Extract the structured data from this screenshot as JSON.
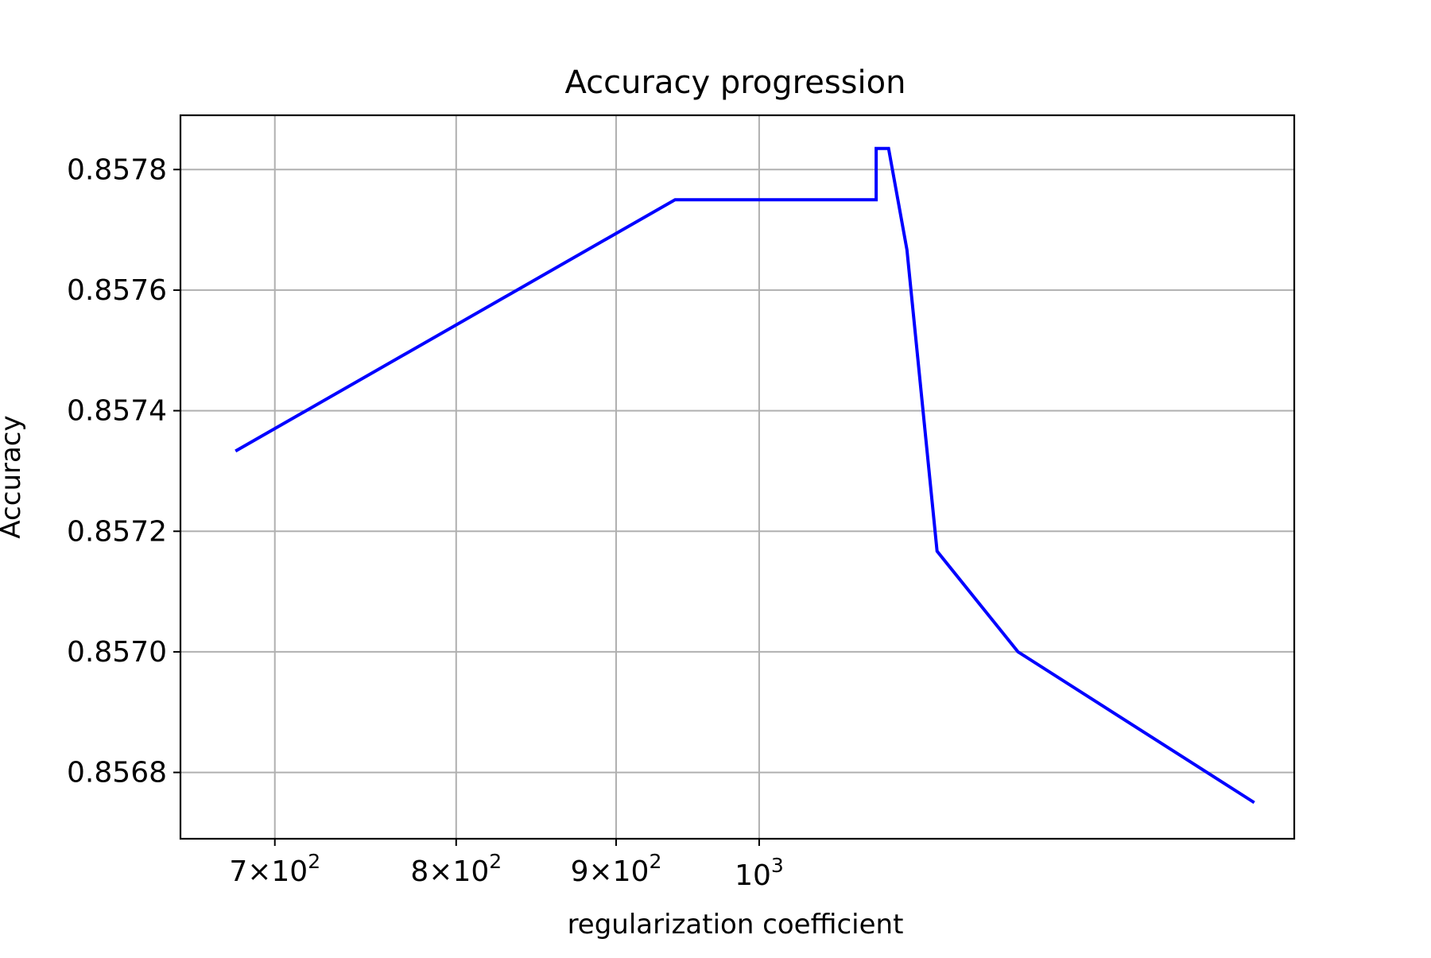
{
  "chart_data": {
    "type": "line",
    "title": "Accuracy progression",
    "xlabel": "regularization coefficient",
    "ylabel": "Accuracy",
    "xscale": "log",
    "xlim": [
      653,
      1483
    ],
    "ylim": [
      0.85669,
      0.85789
    ],
    "grid": true,
    "x_ticks": [
      {
        "value": 700,
        "mantissa": "7",
        "base": "10",
        "exp": "2"
      },
      {
        "value": 800,
        "mantissa": "8",
        "base": "10",
        "exp": "2"
      },
      {
        "value": 900,
        "mantissa": "9",
        "base": "10",
        "exp": "2"
      },
      {
        "value": 1000,
        "mantissa": "",
        "base": "10",
        "exp": "3"
      }
    ],
    "y_ticks": [
      {
        "value": 0.8568,
        "label": "0.8568"
      },
      {
        "value": 0.857,
        "label": "0.8570"
      },
      {
        "value": 0.8572,
        "label": "0.8572"
      },
      {
        "value": 0.8574,
        "label": "0.8574"
      },
      {
        "value": 0.8576,
        "label": "0.8576"
      },
      {
        "value": 0.8578,
        "label": "0.8578"
      }
    ],
    "series": [
      {
        "color": "#0000ff",
        "x": [
          680,
          940,
          1090,
          1090,
          1100,
          1115,
          1140,
          1210,
          1440
        ],
        "y": [
          0.857333,
          0.85775,
          0.85775,
          0.857835,
          0.857835,
          0.857667,
          0.857167,
          0.857,
          0.85675
        ]
      }
    ]
  }
}
